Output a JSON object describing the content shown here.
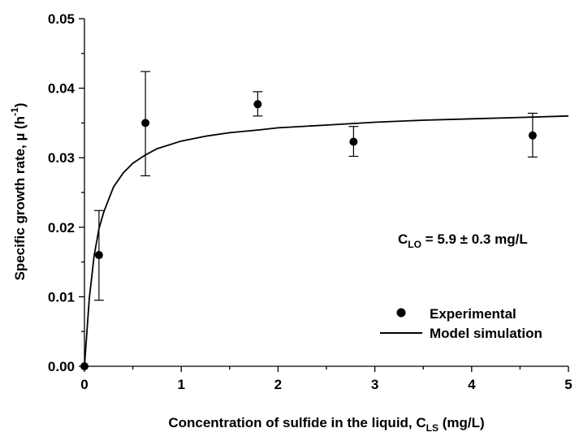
{
  "chart_data": {
    "type": "scatter",
    "xlabel": "Concentration of sulfide in the liquid, C",
    "xlabel_sub": "LS",
    "xlabel_suffix": " (mg/L)",
    "ylabel": "Specific growth rate, µ (h",
    "ylabel_sup": "-1",
    "ylabel_suffix": ")",
    "xlim": [
      0,
      5
    ],
    "ylim": [
      0,
      0.05
    ],
    "x_ticks": [
      0,
      1,
      2,
      3,
      4,
      5
    ],
    "x_tick_labels": [
      "0",
      "1",
      "2",
      "3",
      "4",
      "5"
    ],
    "y_ticks": [
      0,
      0.01,
      0.02,
      0.03,
      0.04,
      0.05
    ],
    "y_tick_labels": [
      "0.00",
      "0.01",
      "0.02",
      "0.03",
      "0.04",
      "0.05"
    ],
    "grid": false,
    "series": [
      {
        "name": "Experimental",
        "kind": "points",
        "x": [
          0,
          0.15,
          0.63,
          1.79,
          2.78,
          4.63
        ],
        "y": [
          0,
          0.016,
          0.035,
          0.0377,
          0.0323,
          0.0332
        ],
        "err_low": [
          0,
          0.0095,
          0.0274,
          0.036,
          0.0302,
          0.0301
        ],
        "err_high": [
          0,
          0.0224,
          0.0424,
          0.0395,
          0.0345,
          0.0364
        ]
      },
      {
        "name": "Model simulation",
        "kind": "line",
        "x": [
          0,
          0.05,
          0.1,
          0.15,
          0.2,
          0.3,
          0.4,
          0.5,
          0.63,
          0.75,
          1.0,
          1.25,
          1.5,
          1.8,
          2.0,
          2.5,
          3.0,
          3.5,
          4.0,
          4.5,
          5.0
        ],
        "y": [
          0,
          0.0098,
          0.0159,
          0.0198,
          0.0222,
          0.0258,
          0.0278,
          0.0292,
          0.0304,
          0.0313,
          0.0324,
          0.0331,
          0.0336,
          0.034,
          0.0343,
          0.0347,
          0.0351,
          0.0354,
          0.0356,
          0.0358,
          0.036
        ]
      }
    ],
    "legend_position": "bottom-right",
    "annotation": {
      "main": "C",
      "sub": "LO",
      "rest": " = 5.9 ±  0.3 mg/L"
    }
  }
}
